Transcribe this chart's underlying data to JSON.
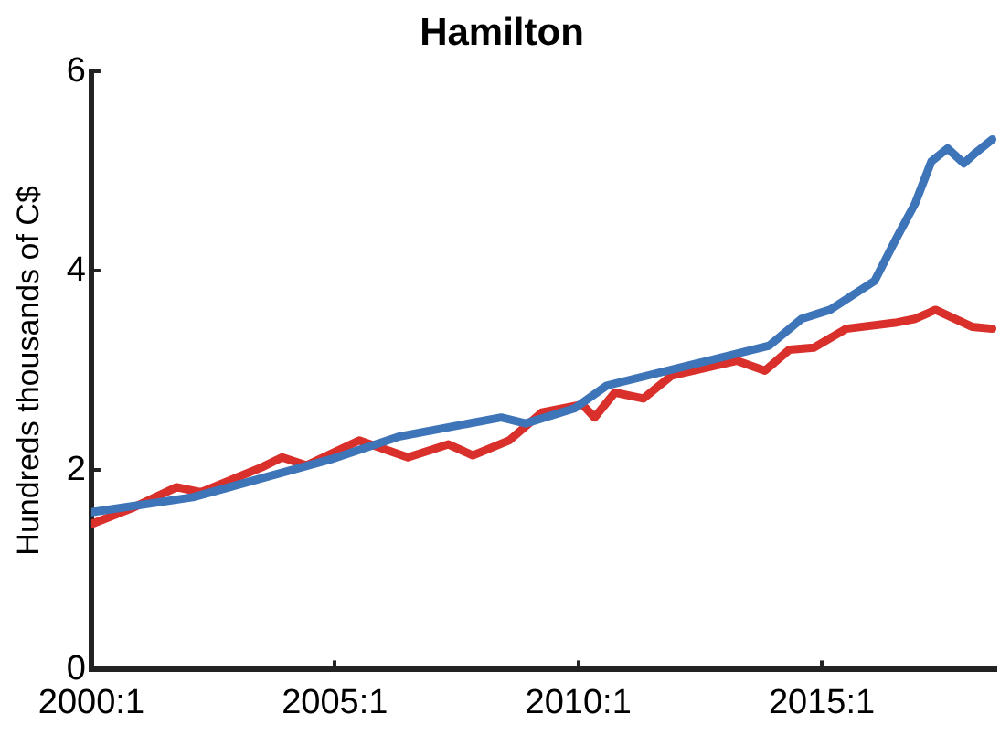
{
  "chart_data": {
    "type": "line",
    "title": "Hamilton",
    "ylabel": "Hundreds thousands of C$",
    "xlim": [
      "2000-01",
      "2018-08"
    ],
    "xticks": [
      {
        "value": "2000-01",
        "label": "2000:1"
      },
      {
        "value": "2005-01",
        "label": "2005:1"
      },
      {
        "value": "2010-01",
        "label": "2010:1"
      },
      {
        "value": "2015-01",
        "label": "2015:1"
      }
    ],
    "ylim": [
      0,
      6
    ],
    "yticks": [
      0,
      2,
      4,
      6
    ],
    "grid": false,
    "legend": false,
    "marker": "none",
    "line_style": "solid",
    "series": [
      {
        "color": "#3e74b8",
        "x": [
          "2000-01",
          "2002-02",
          "2004-12",
          "2006-05",
          "2008-06",
          "2008-12",
          "2009-12",
          "2010-08",
          "2012-09",
          "2013-12",
          "2014-08",
          "2015-03",
          "2016-02",
          "2016-07",
          "2016-12",
          "2017-04",
          "2017-08",
          "2017-12",
          "2018-03",
          "2018-07"
        ],
        "values": [
          1.58,
          1.73,
          2.11,
          2.34,
          2.53,
          2.47,
          2.62,
          2.85,
          3.1,
          3.25,
          3.52,
          3.61,
          3.9,
          4.3,
          4.68,
          5.1,
          5.23,
          5.08,
          5.19,
          5.32
        ]
      },
      {
        "color": "#d9302c",
        "x": [
          "2000-01",
          "2000-11",
          "2001-10",
          "2002-04",
          "2003-07",
          "2003-12",
          "2004-06",
          "2005-07",
          "2006-07",
          "2007-05",
          "2007-11",
          "2008-08",
          "2009-04",
          "2010-02",
          "2010-05",
          "2010-10",
          "2011-05",
          "2011-12",
          "2013-04",
          "2013-11",
          "2014-05",
          "2014-11",
          "2015-07",
          "2016-07",
          "2016-12",
          "2017-05",
          "2018-02",
          "2018-07"
        ],
        "values": [
          1.46,
          1.62,
          1.83,
          1.78,
          2.03,
          2.13,
          2.05,
          2.3,
          2.13,
          2.26,
          2.15,
          2.3,
          2.58,
          2.66,
          2.53,
          2.78,
          2.72,
          2.95,
          3.1,
          3.0,
          3.21,
          3.23,
          3.42,
          3.48,
          3.52,
          3.61,
          3.44,
          3.42
        ]
      }
    ]
  }
}
